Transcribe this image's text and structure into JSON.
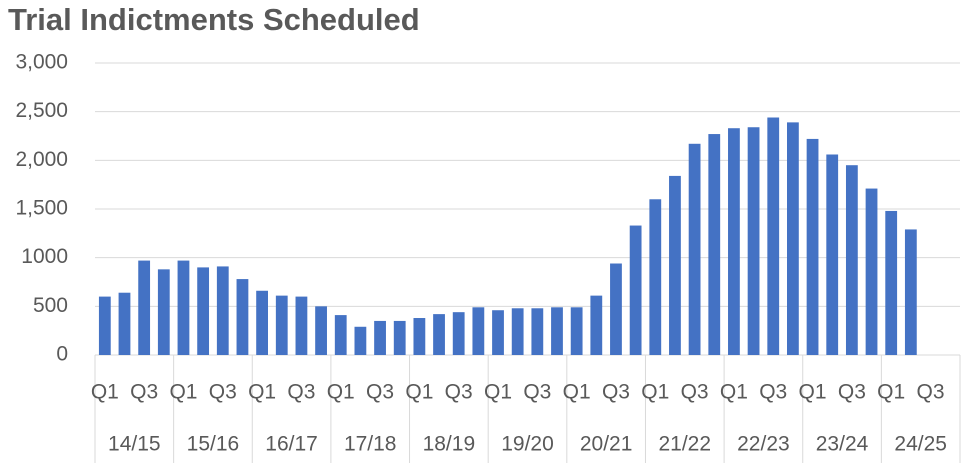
{
  "chart_data": {
    "type": "bar",
    "title": "Trial Indictments Scheduled",
    "categories": [
      "Q1",
      null,
      "Q3",
      null,
      "Q1",
      null,
      "Q3",
      null,
      "Q1",
      null,
      "Q3",
      null,
      "Q1",
      null,
      "Q3",
      null,
      "Q1",
      null,
      "Q3",
      null,
      "Q1",
      null,
      "Q3",
      null,
      "Q1",
      null,
      "Q3",
      null,
      "Q1",
      null,
      "Q3",
      null,
      "Q1",
      null,
      "Q3",
      null,
      "Q1",
      null,
      "Q3",
      null,
      "Q1",
      null,
      "Q3",
      null
    ],
    "groups": [
      "14/15",
      "15/16",
      "16/17",
      "17/18",
      "18/19",
      "19/20",
      "20/21",
      "21/22",
      "22/23",
      "23/24",
      "24/25"
    ],
    "values": [
      600,
      640,
      970,
      880,
      970,
      900,
      910,
      780,
      660,
      610,
      600,
      500,
      410,
      290,
      350,
      350,
      380,
      420,
      440,
      490,
      460,
      480,
      480,
      490,
      490,
      610,
      940,
      1330,
      1600,
      1840,
      2170,
      2270,
      2330,
      2340,
      2440,
      2390,
      2220,
      2060,
      1950,
      1710,
      1480,
      1290,
      null,
      null
    ],
    "color": "#4472c4",
    "ylim": [
      0,
      3000
    ],
    "yticks": [
      0,
      500,
      1000,
      {
        "value": 1500,
        "label": "1,500"
      },
      {
        "value": 2000,
        "label": "2,000"
      },
      {
        "value": 2500,
        "label": "2,500"
      },
      {
        "value": 3000,
        "label": "3,000"
      }
    ],
    "grid": true
  }
}
